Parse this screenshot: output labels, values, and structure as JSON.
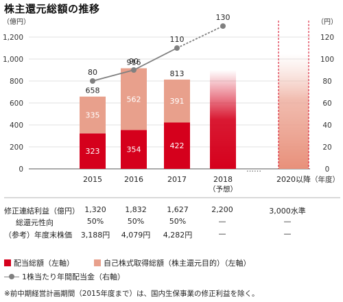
{
  "title": "株主還元総額の推移",
  "left_unit": "（億円）",
  "right_unit": "（円）",
  "year_unit": "（年度）",
  "colors": {
    "dividend": "#d5001c",
    "buyback": "#e8a08c",
    "line": "#808080",
    "grid": "#d8d8d8"
  },
  "chart_data": {
    "type": "bar",
    "categories": [
      "2015",
      "2016",
      "2017",
      "2018",
      "2020以降"
    ],
    "category_sublabels": [
      "",
      "",
      "",
      "（予想）",
      ""
    ],
    "ylim": [
      0,
      1300
    ],
    "y_ticks": [
      "0",
      "200",
      "400",
      "600",
      "800",
      "1,000",
      "1,200"
    ],
    "y2lim": [
      0,
      130
    ],
    "y2_ticks": [
      "0",
      "20",
      "40",
      "60",
      "80",
      "100",
      "120"
    ],
    "series": [
      {
        "name": "配当総額（左軸）",
        "values": [
          323,
          354,
          422,
          null,
          null
        ]
      },
      {
        "name": "自己株式取得総額（株主還元目的）（左軸）",
        "values": [
          335,
          562,
          391,
          null,
          null
        ]
      }
    ],
    "totals": [
      658,
      916,
      813,
      null,
      null
    ],
    "forecast_total_2018": 900,
    "line_series": {
      "name": "1株当たり年間配当金（右軸）",
      "values": [
        80,
        90,
        110,
        130
      ],
      "labels": [
        "80",
        "90",
        "110",
        "130"
      ]
    },
    "gap_marker": "……"
  },
  "table": {
    "rows": [
      {
        "label": "修正連結利益（億円）",
        "values": [
          "1,320",
          "1,832",
          "1,627",
          "2,200",
          "3,000水準"
        ]
      },
      {
        "label": "総還元性向",
        "values": [
          "50%",
          "50%",
          "50%",
          "—",
          "—"
        ]
      },
      {
        "label": "（参考）年度末株価",
        "values": [
          "3,188円",
          "4,079円",
          "4,282円",
          "—",
          "—"
        ]
      }
    ]
  },
  "legend": {
    "dividend": "配当総額（左軸）",
    "buyback": "自己株式取得総額（株主還元目的）（左軸）",
    "line": "1株当たり年間配当金（右軸）"
  },
  "note": "※前中期経営計画期間（2015年度まで）は、国内生保事業の修正利益を除く。"
}
